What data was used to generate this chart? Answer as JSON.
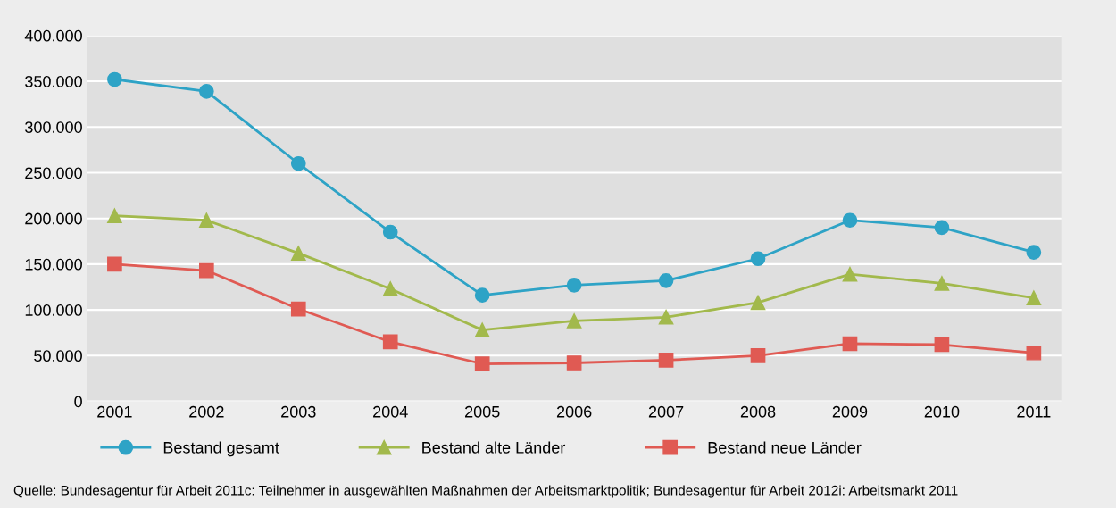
{
  "chart_data": {
    "type": "line",
    "categories": [
      "2001",
      "2002",
      "2003",
      "2004",
      "2005",
      "2006",
      "2007",
      "2008",
      "2009",
      "2010",
      "2011"
    ],
    "series": [
      {
        "name": "Bestand gesamt",
        "color": "#2ea3c6",
        "marker": "circle",
        "values": [
          352000,
          339000,
          260000,
          185000,
          116000,
          127000,
          132000,
          156000,
          198000,
          190000,
          163000
        ]
      },
      {
        "name": "Bestand alte Länder",
        "color": "#a2b94c",
        "marker": "triangle",
        "values": [
          203000,
          198000,
          162000,
          123000,
          78000,
          88000,
          92000,
          108000,
          139000,
          129000,
          113000
        ]
      },
      {
        "name": "Bestand neue Länder",
        "color": "#e05a53",
        "marker": "square",
        "values": [
          150000,
          143000,
          101000,
          65000,
          41000,
          42000,
          45000,
          50000,
          63000,
          62000,
          53000
        ]
      }
    ],
    "ylim": [
      0,
      400000
    ],
    "yticks": [
      0,
      {
        "value": 50000,
        "label": "50.000"
      },
      {
        "value": 100000,
        "label": "100.000"
      },
      {
        "value": 150000,
        "label": "150.000"
      },
      {
        "value": 200000,
        "label": "200.000"
      },
      {
        "value": 250000,
        "label": "250.000"
      },
      {
        "value": 300000,
        "label": "300.000"
      },
      {
        "value": 350000,
        "label": "350.000"
      },
      {
        "value": 400000,
        "label": "400.000"
      }
    ],
    "grid": "y",
    "legend": "bottom",
    "line_style": "solid",
    "annotations": [
      "Quelle: Bundesagentur für Arbeit 2011c: Teilnehmer in ausgewählten Maßnahmen der Arbeitsmarktpolitik; Bundesagentur für Arbeit 2012i: Arbeitsmarkt 2011"
    ]
  }
}
